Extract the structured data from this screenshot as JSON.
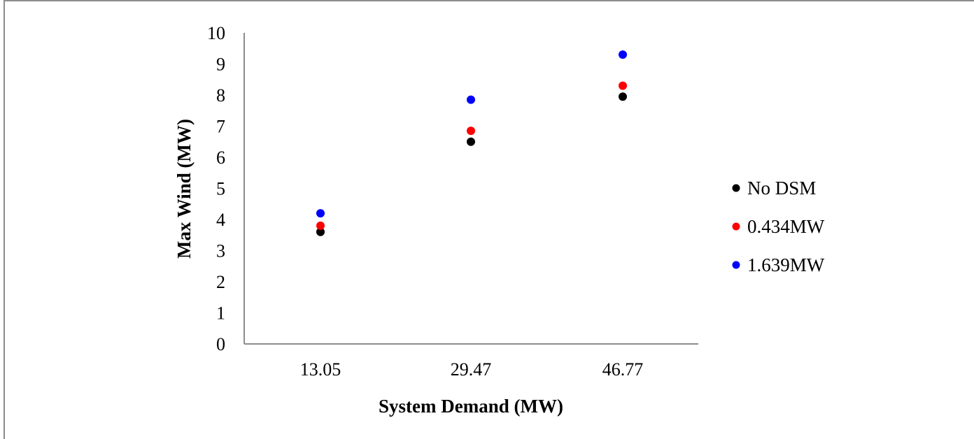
{
  "chart_data": {
    "type": "scatter",
    "title": "",
    "xlabel": "System Demand (MW)",
    "ylabel": "Max Wind (MW)",
    "categories": [
      "13.05",
      "29.47",
      "46.77"
    ],
    "ylim": [
      0,
      10
    ],
    "yticks": [
      "0",
      "1",
      "2",
      "3",
      "4",
      "5",
      "6",
      "7",
      "8",
      "9",
      "10"
    ],
    "grid": false,
    "legend_position": "right",
    "series": [
      {
        "name": "No DSM",
        "color": "#000000",
        "values": [
          3.6,
          6.5,
          7.95
        ]
      },
      {
        "name": "0.434MW",
        "color": "#ff0000",
        "values": [
          3.8,
          6.85,
          8.3
        ]
      },
      {
        "name": "1.639MW",
        "color": "#0000ff",
        "values": [
          4.2,
          7.85,
          9.3
        ]
      }
    ]
  }
}
